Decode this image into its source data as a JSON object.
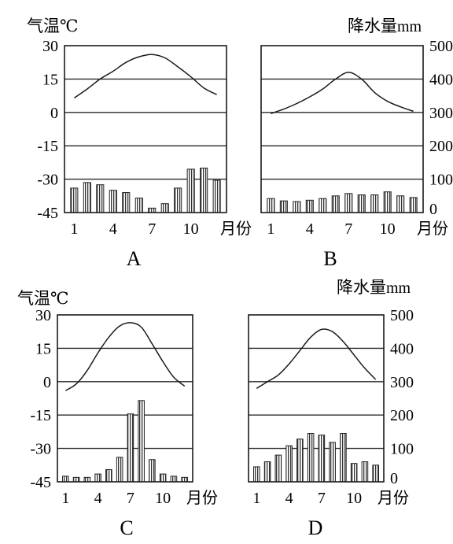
{
  "figure": {
    "left_axis_title": "气温℃",
    "right_axis_title_cn": "降水量",
    "right_axis_title_unit": "mm",
    "month_unit": "月份"
  },
  "chart_data": [
    {
      "type": "bar",
      "panel_label": "A",
      "months": [
        1,
        2,
        3,
        4,
        5,
        6,
        7,
        8,
        9,
        10,
        11,
        12
      ],
      "x_ticks": [
        1,
        4,
        7,
        10
      ],
      "temp_axis_ticks": [
        30,
        15,
        0,
        -15,
        -30,
        -45
      ],
      "precip_axis_ticks": [
        500,
        400,
        300,
        200,
        100,
        0
      ],
      "show_temp_axis": true,
      "show_precip_axis": false,
      "ylim_temp": [
        -45,
        30
      ],
      "ylim_precip": [
        0,
        500
      ],
      "grid": "horizontal",
      "series": [
        {
          "name": "气温",
          "type": "line",
          "axis": "temp",
          "values": [
            6.5,
            10.5,
            15,
            18.5,
            22.5,
            25,
            26,
            24.5,
            20.5,
            16,
            11,
            8
          ]
        },
        {
          "name": "降水量",
          "type": "bar",
          "axis": "temp",
          "values": [
            -34,
            -31.5,
            -32.5,
            -35,
            -36,
            -38.5,
            -43,
            -41,
            -34,
            -25.5,
            -25,
            -30.5
          ]
        }
      ]
    },
    {
      "type": "bar",
      "panel_label": "B",
      "months": [
        1,
        2,
        3,
        4,
        5,
        6,
        7,
        8,
        9,
        10,
        11,
        12
      ],
      "x_ticks": [
        1,
        4,
        7,
        10
      ],
      "temp_axis_ticks": [
        30,
        15,
        0,
        -15,
        -30,
        -45
      ],
      "precip_axis_ticks": [
        500,
        400,
        300,
        200,
        100,
        0
      ],
      "show_temp_axis": false,
      "show_precip_axis": true,
      "ylim_temp": [
        -45,
        30
      ],
      "ylim_precip": [
        0,
        500
      ],
      "grid": "horizontal",
      "series": [
        {
          "name": "气温",
          "type": "line",
          "axis": "temp",
          "values": [
            -0.5,
            1.5,
            4,
            7,
            10.5,
            15,
            18,
            15,
            9,
            5,
            2.5,
            0.5
          ]
        },
        {
          "name": "降水量",
          "type": "bar",
          "axis": "precip",
          "values": [
            42,
            35,
            33,
            37,
            42,
            50,
            57,
            53,
            53,
            62,
            50,
            45
          ]
        }
      ]
    },
    {
      "type": "bar",
      "panel_label": "C",
      "months": [
        1,
        2,
        3,
        4,
        5,
        6,
        7,
        8,
        9,
        10,
        11,
        12
      ],
      "x_ticks": [
        1,
        4,
        7,
        10
      ],
      "temp_axis_ticks": [
        30,
        15,
        0,
        -15,
        -30,
        -45
      ],
      "precip_axis_ticks": [
        500,
        400,
        300,
        200,
        100,
        0
      ],
      "show_temp_axis": true,
      "show_precip_axis": false,
      "ylim_temp": [
        -45,
        30
      ],
      "ylim_precip": [
        0,
        500
      ],
      "grid": "horizontal",
      "series": [
        {
          "name": "气温",
          "type": "line",
          "axis": "temp",
          "values": [
            -4,
            -1,
            5,
            13,
            20,
            25,
            26.5,
            24.5,
            17,
            9,
            2,
            -2
          ]
        },
        {
          "name": "降水量",
          "type": "bar",
          "axis": "temp",
          "values": [
            -42.5,
            -43,
            -43,
            -41.5,
            -39.5,
            -34,
            -14.5,
            -8.5,
            -35,
            -41.5,
            -42.5,
            -43
          ]
        }
      ]
    },
    {
      "type": "bar",
      "panel_label": "D",
      "months": [
        1,
        2,
        3,
        4,
        5,
        6,
        7,
        8,
        9,
        10,
        11,
        12
      ],
      "x_ticks": [
        1,
        4,
        7,
        10
      ],
      "temp_axis_ticks": [
        30,
        15,
        0,
        -15,
        -30,
        -45
      ],
      "precip_axis_ticks": [
        500,
        400,
        300,
        200,
        100,
        0
      ],
      "show_temp_axis": false,
      "show_precip_axis": true,
      "ylim_temp": [
        -45,
        30
      ],
      "ylim_precip": [
        0,
        500
      ],
      "grid": "horizontal",
      "series": [
        {
          "name": "气温",
          "type": "line",
          "axis": "temp",
          "values": [
            -3,
            0,
            3,
            8,
            14,
            20,
            23.5,
            22.5,
            18,
            12,
            6,
            1
          ]
        },
        {
          "name": "降水量",
          "type": "bar",
          "axis": "precip",
          "values": [
            45,
            60,
            80,
            108,
            128,
            145,
            140,
            118,
            145,
            55,
            60,
            50
          ]
        }
      ]
    }
  ]
}
